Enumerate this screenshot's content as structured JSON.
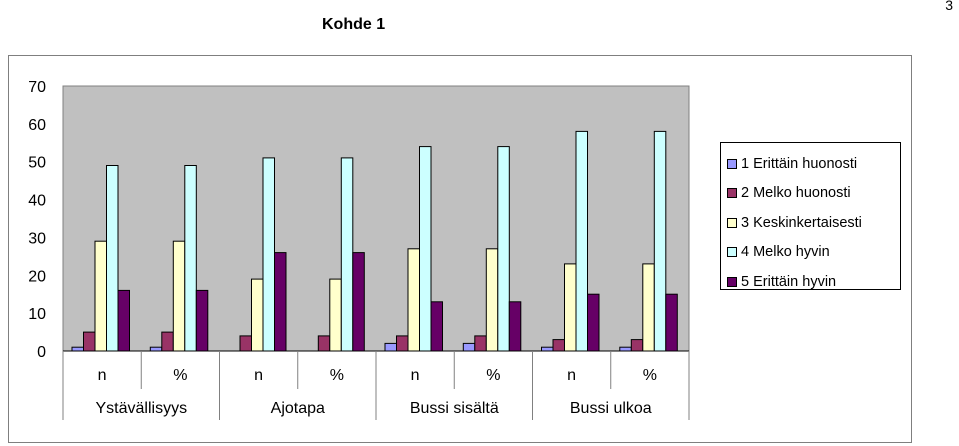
{
  "page": {
    "number": "3",
    "title": "Kohde 1"
  },
  "chart_data": {
    "type": "bar",
    "categories": [
      "n",
      "%",
      "n",
      "%",
      "n",
      "%",
      "n",
      "%"
    ],
    "groups": [
      "Ystävällisyys",
      "Ajotapa",
      "Bussi sisältä",
      "Bussi ulkoa"
    ],
    "series": [
      {
        "name": "1 Erittäin huonosti",
        "color": "#9999ff",
        "values": [
          1,
          1,
          0,
          0,
          2,
          2,
          1,
          1
        ]
      },
      {
        "name": "2 Melko huonosti",
        "color": "#993366",
        "values": [
          5,
          5,
          4,
          4,
          4,
          4,
          3,
          3
        ]
      },
      {
        "name": "3 Keskinkertaisesti",
        "color": "#ffffcc",
        "values": [
          29,
          29,
          19,
          19,
          27,
          27,
          23,
          23
        ]
      },
      {
        "name": "4 Melko hyvin",
        "color": "#ccffff",
        "values": [
          49,
          49,
          51,
          51,
          54,
          54,
          58,
          58
        ]
      },
      {
        "name": "5 Erittäin hyvin",
        "color": "#660066",
        "values": [
          16,
          16,
          26,
          26,
          13,
          13,
          15,
          15
        ]
      }
    ],
    "y_ticks": [
      "0",
      "10",
      "20",
      "30",
      "40",
      "50",
      "60",
      "70"
    ],
    "ylim": [
      0,
      70
    ],
    "grid": false,
    "plot_background": "#c0c0c0",
    "legend_position": "right"
  }
}
